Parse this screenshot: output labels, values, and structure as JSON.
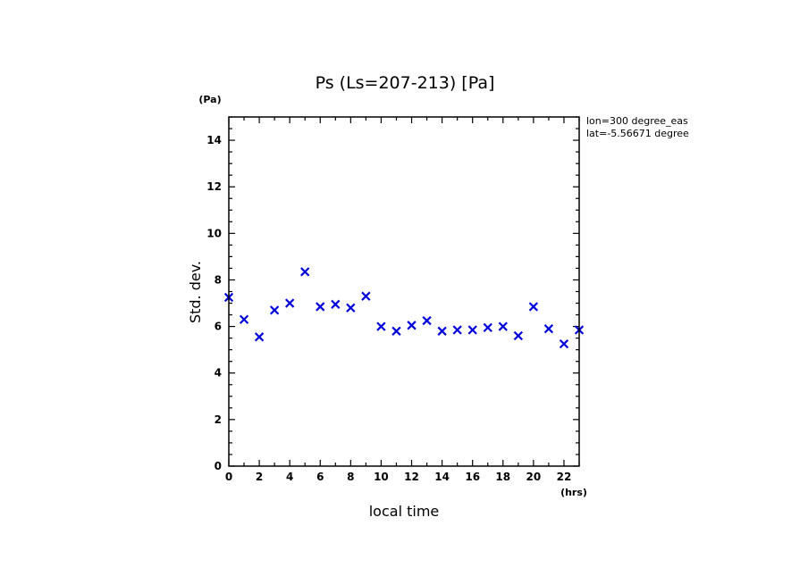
{
  "chart_data": {
    "type": "scatter",
    "title": "Ps (Ls=207-213) [Pa]",
    "xlabel": "local time",
    "ylabel": "Std. dev.",
    "x_unit": "(hrs)",
    "y_unit": "(Pa)",
    "xlim": [
      0,
      23
    ],
    "ylim": [
      0,
      15
    ],
    "x_ticks": [
      "0",
      "2",
      "4",
      "6",
      "8",
      "10",
      "12",
      "14",
      "16",
      "18",
      "20",
      "22"
    ],
    "y_ticks": [
      "0",
      "2",
      "4",
      "6",
      "8",
      "10",
      "12",
      "14"
    ],
    "annotations": [
      "lon=300 degree_eas",
      "lat=-5.56671 degree"
    ],
    "marker_color": "#0000dd",
    "series": [
      {
        "name": "Std. dev.",
        "x": [
          0,
          1,
          2,
          3,
          4,
          5,
          6,
          7,
          8,
          9,
          10,
          11,
          12,
          13,
          14,
          15,
          16,
          17,
          18,
          19,
          20,
          21,
          22,
          23
        ],
        "y": [
          7.25,
          6.3,
          5.55,
          6.7,
          7.0,
          8.35,
          6.85,
          6.95,
          6.8,
          7.3,
          6.0,
          5.8,
          6.05,
          6.25,
          5.8,
          5.85,
          5.85,
          5.95,
          6.0,
          5.6,
          6.85,
          5.9,
          5.25,
          5.85
        ]
      }
    ]
  }
}
